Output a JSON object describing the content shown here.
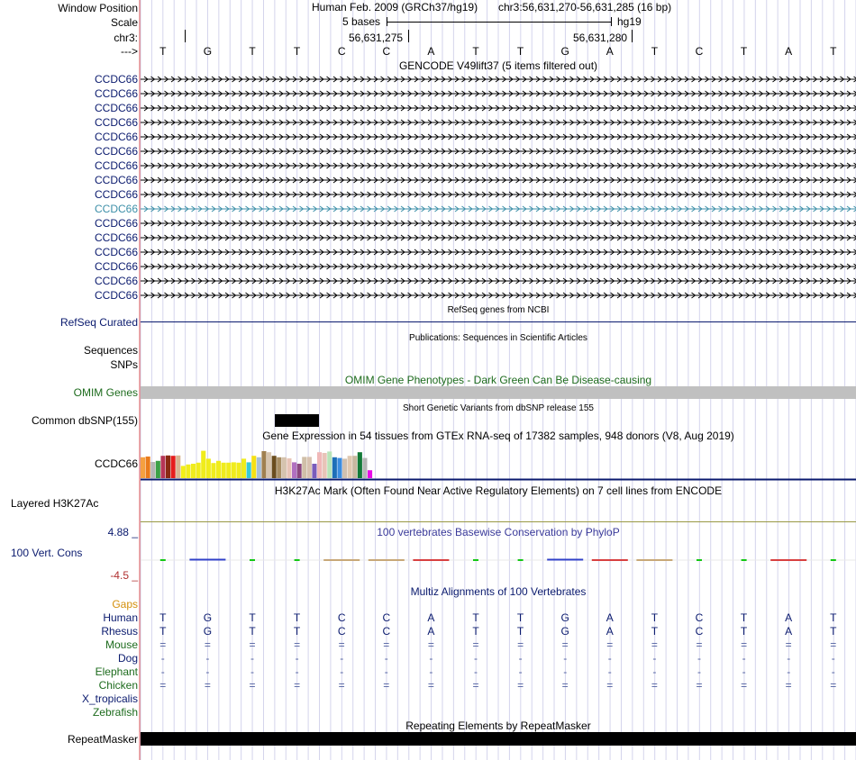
{
  "colors": {
    "label_navy": "#0a1a6e",
    "highlight_teal": "#3d8fa8",
    "omim_green": "#1d6b1d",
    "gaps_orange": "#d4900c",
    "redline": "#e05a5a",
    "grid": "#d4d4ec",
    "grey_bar": "#c0c0c0"
  },
  "header": {
    "window_position_label": "Window Position",
    "assembly": "Human Feb. 2009 (GRCh37/hg19)",
    "position": "chr3:56,631,270-56,631,285 (16 bp)",
    "scale_label": "Scale",
    "scale_text": "5 bases",
    "scale_db": "hg19",
    "chrom_label": "chr3:",
    "coord_1": "56,631,275",
    "coord_2": "56,631,280",
    "strand_label": "--->"
  },
  "sequence": [
    "T",
    "G",
    "T",
    "T",
    "C",
    "C",
    "A",
    "T",
    "T",
    "G",
    "A",
    "T",
    "C",
    "T",
    "A",
    "T"
  ],
  "gencode": {
    "title": "GENCODE V49lift37 (5 items filtered out)",
    "items": [
      "CCDC66",
      "CCDC66",
      "CCDC66",
      "CCDC66",
      "CCDC66",
      "CCDC66",
      "CCDC66",
      "CCDC66",
      "CCDC66",
      "CCDC66",
      "CCDC66",
      "CCDC66",
      "CCDC66",
      "CCDC66",
      "CCDC66",
      "CCDC66"
    ],
    "highlighted_index": 9
  },
  "tracks": {
    "refseq_title": "RefSeq genes from NCBI",
    "refseq_label": "RefSeq Curated",
    "pubs_title": "Publications: Sequences in Scientific Articles",
    "sequences_label": "Sequences",
    "snps_label": "SNPs",
    "omim_title": "OMIM Gene Phenotypes - Dark Green Can Be Disease-causing",
    "omim_label": "OMIM Genes",
    "dbsnp_title": "Short Genetic Variants from dbSNP release 155",
    "dbsnp_label": "Common dbSNP(155)",
    "gtex_title": "Gene Expression in 54 tissues from GTEx RNA-seq of 17382 samples, 948 donors (V8, Aug 2019)",
    "gtex_label": "CCDC66",
    "h3k27_title": "H3K27Ac Mark (Often Found Near Active Regulatory Elements) on 7 cell lines from ENCODE",
    "h3k27_label": "Layered H3K27Ac",
    "phylop_title": "100 vertebrates Basewise Conservation by PhyloP",
    "phylop_label": "100 Vert. Cons",
    "phylop_max": "4.88 _",
    "phylop_min": "-4.5 _",
    "gaps_label": "Gaps",
    "multiz_title": "Multiz Alignments of 100 Vertebrates",
    "rmsk_title": "Repeating Elements by RepeatMasker",
    "rmsk_label": "RepeatMasker"
  },
  "gtex_bars": [
    {
      "c": "#f5a040",
      "h": 0.58
    },
    {
      "c": "#e97b1c",
      "h": 0.6
    },
    {
      "c": "#b5b5b5",
      "h": 0.45
    },
    {
      "c": "#3da147",
      "h": 0.48
    },
    {
      "c": "#b63556",
      "h": 0.62
    },
    {
      "c": "#8a2a12",
      "h": 0.63
    },
    {
      "c": "#e51c1c",
      "h": 0.62
    },
    {
      "c": "#d7b492",
      "h": 0.63
    },
    {
      "c": "#f3ef16",
      "h": 0.34
    },
    {
      "c": "#f0ec1c",
      "h": 0.38
    },
    {
      "c": "#f0ec1c",
      "h": 0.4
    },
    {
      "c": "#f0ec1c",
      "h": 0.43
    },
    {
      "c": "#f0ec1c",
      "h": 0.76
    },
    {
      "c": "#f0ec1c",
      "h": 0.54
    },
    {
      "c": "#f0ec1c",
      "h": 0.42
    },
    {
      "c": "#f0ec1c",
      "h": 0.48
    },
    {
      "c": "#f0ec1c",
      "h": 0.43
    },
    {
      "c": "#f0ec1c",
      "h": 0.43
    },
    {
      "c": "#f0ec1c",
      "h": 0.44
    },
    {
      "c": "#f0ec1c",
      "h": 0.43
    },
    {
      "c": "#f0ec1c",
      "h": 0.54
    },
    {
      "c": "#38c9d7",
      "h": 0.44
    },
    {
      "c": "#f5e014",
      "h": 0.62
    },
    {
      "c": "#a8c0d8",
      "h": 0.58
    },
    {
      "c": "#a08050",
      "h": 0.75
    },
    {
      "c": "#d7c5b0",
      "h": 0.72
    },
    {
      "c": "#6a4d1e",
      "h": 0.62
    },
    {
      "c": "#a88e64",
      "h": 0.58
    },
    {
      "c": "#d5c3ae",
      "h": 0.58
    },
    {
      "c": "#e8c4b8",
      "h": 0.55
    },
    {
      "c": "#b070c0",
      "h": 0.44
    },
    {
      "c": "#8c4880",
      "h": 0.4
    },
    {
      "c": "#d0bfa8",
      "h": 0.59
    },
    {
      "c": "#d8c2b0",
      "h": 0.59
    },
    {
      "c": "#7a5cbb",
      "h": 0.4
    },
    {
      "c": "#f0b8b8",
      "h": 0.72
    },
    {
      "c": "#e8c4b8",
      "h": 0.7
    },
    {
      "c": "#b8e4b8",
      "h": 0.74
    },
    {
      "c": "#1e6fb8",
      "h": 0.58
    },
    {
      "c": "#3b8de0",
      "h": 0.56
    },
    {
      "c": "#d0c0b0",
      "h": 0.54
    },
    {
      "c": "#e0c8b0",
      "h": 0.62
    },
    {
      "c": "#c8b8a0",
      "h": 0.62
    },
    {
      "c": "#137a38",
      "h": 0.72
    },
    {
      "c": "#b5b5b5",
      "h": 0.56
    },
    {
      "c": "#e80ae8",
      "h": 0.22
    }
  ],
  "phylop_ticks": [
    "#14c814",
    "#3040c8",
    "#14c814",
    "#14c814",
    "#c8a878",
    "#c8a878",
    "#d84040",
    "#14c814",
    "#14c814",
    "#3040c8",
    "#d84040",
    "#c8a878",
    "#14c814",
    "#14c814",
    "#d84040",
    "#14c814"
  ],
  "multiz": {
    "species": [
      {
        "name": "Human",
        "color": "#0a1a6e",
        "bases": [
          "T",
          "G",
          "T",
          "T",
          "C",
          "C",
          "A",
          "T",
          "T",
          "G",
          "A",
          "T",
          "C",
          "T",
          "A",
          "T"
        ]
      },
      {
        "name": "Rhesus",
        "color": "#0a1a6e",
        "bases": [
          "T",
          "G",
          "T",
          "T",
          "C",
          "C",
          "A",
          "T",
          "T",
          "G",
          "A",
          "T",
          "C",
          "T",
          "A",
          "T"
        ]
      },
      {
        "name": "Mouse",
        "color": "#1d6b1d",
        "bases": [
          "=",
          "=",
          "=",
          "=",
          "=",
          "=",
          "=",
          "=",
          "=",
          "=",
          "=",
          "=",
          "=",
          "=",
          "=",
          "="
        ]
      },
      {
        "name": "Dog",
        "color": "#0a1a6e",
        "bases": [
          "-",
          "-",
          "-",
          "-",
          "-",
          "-",
          "-",
          "-",
          "-",
          "-",
          "-",
          "-",
          "-",
          "-",
          "-",
          "-"
        ]
      },
      {
        "name": "Elephant",
        "color": "#1d6b1d",
        "bases": [
          "-",
          "-",
          "-",
          "-",
          "-",
          "-",
          "-",
          "-",
          "-",
          "-",
          "-",
          "-",
          "-",
          "-",
          "-",
          "-"
        ]
      },
      {
        "name": "Chicken",
        "color": "#1d6b1d",
        "bases": [
          "=",
          "=",
          "=",
          "=",
          "=",
          "=",
          "=",
          "=",
          "=",
          "=",
          "=",
          "=",
          "=",
          "=",
          "=",
          "="
        ]
      },
      {
        "name": "X_tropicalis",
        "color": "#0a1a6e",
        "bases": []
      },
      {
        "name": "Zebrafish",
        "color": "#1d6b1d",
        "bases": []
      }
    ]
  }
}
